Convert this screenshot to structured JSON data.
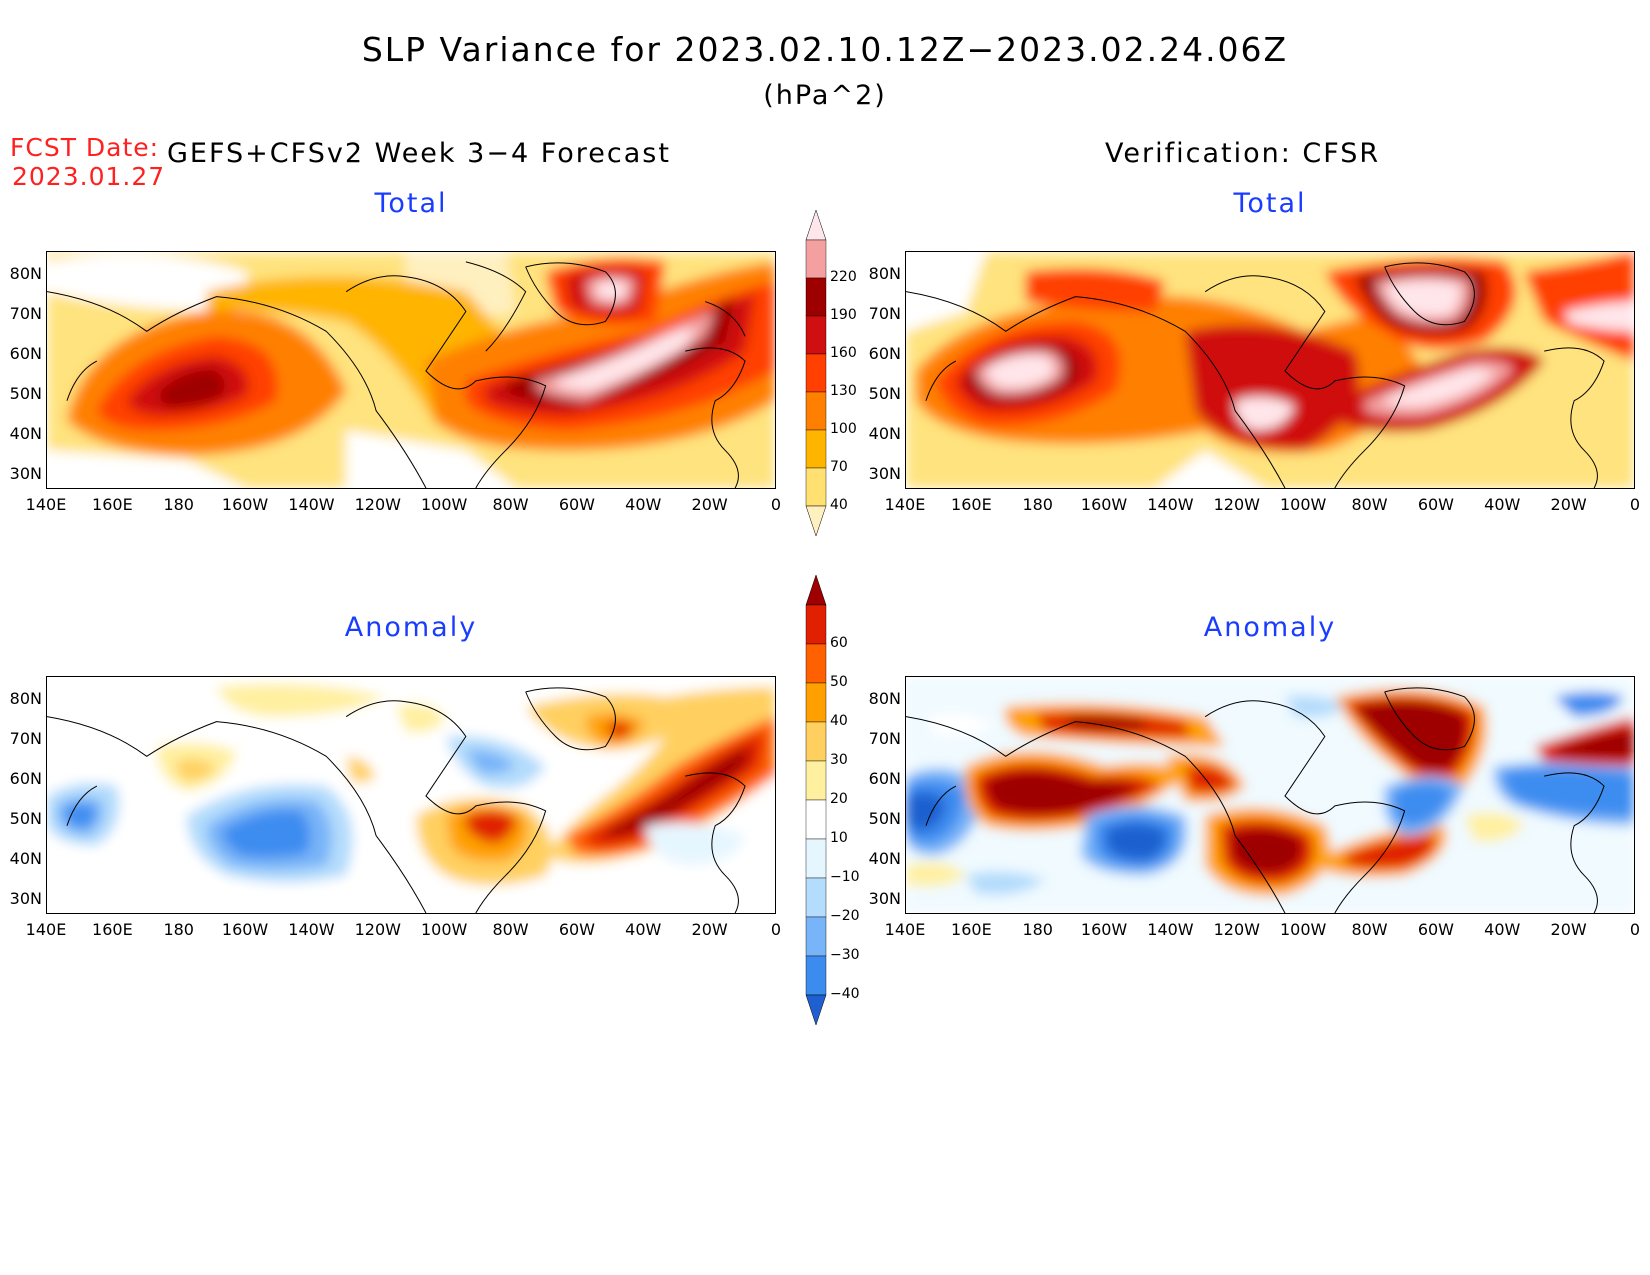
{
  "title": "SLP Variance for 2023.02.10.12Z−2023.02.24.06Z",
  "units": "(hPa^2)",
  "fcst_label": "FCST Date:",
  "fcst_date": "2023.01.27",
  "left_header": "GEFS+CFSv2 Week 3−4 Forecast",
  "right_header": "Verification: CFSR",
  "panels": {
    "top_left_title": "Total",
    "top_right_title": "Total",
    "bottom_left_title": "Anomaly",
    "bottom_right_title": "Anomaly"
  },
  "axes": {
    "lat_labels": [
      "80N",
      "70N",
      "60N",
      "50N",
      "40N",
      "30N"
    ],
    "lon_labels": [
      "140E",
      "160E",
      "180",
      "160W",
      "140W",
      "120W",
      "100W",
      "80W",
      "60W",
      "40W",
      "20W",
      "0"
    ]
  },
  "colorbars": {
    "total": {
      "labels": [
        "40",
        "70",
        "100",
        "130",
        "160",
        "190",
        "220"
      ],
      "colors": [
        "#fff0c0",
        "#ffe070",
        "#ffb400",
        "#ff8000",
        "#ff4000",
        "#d01010",
        "#9e0000",
        "#f4a0a0",
        "#ffe6ea"
      ]
    },
    "anomaly": {
      "labels": [
        "−40",
        "−30",
        "−20",
        "−10",
        "10",
        "20",
        "30",
        "40",
        "50",
        "60"
      ],
      "colors": [
        "#1e60d0",
        "#3c8cf0",
        "#78b4f8",
        "#b4dcfc",
        "#e6f6ff",
        "#ffffff",
        "#fff0a0",
        "#ffd060",
        "#ffa000",
        "#ff6000",
        "#e02000",
        "#9e0000"
      ]
    }
  },
  "colors": {
    "title_blue": "#1a3cff",
    "fcst_red": "#ff2020"
  }
}
